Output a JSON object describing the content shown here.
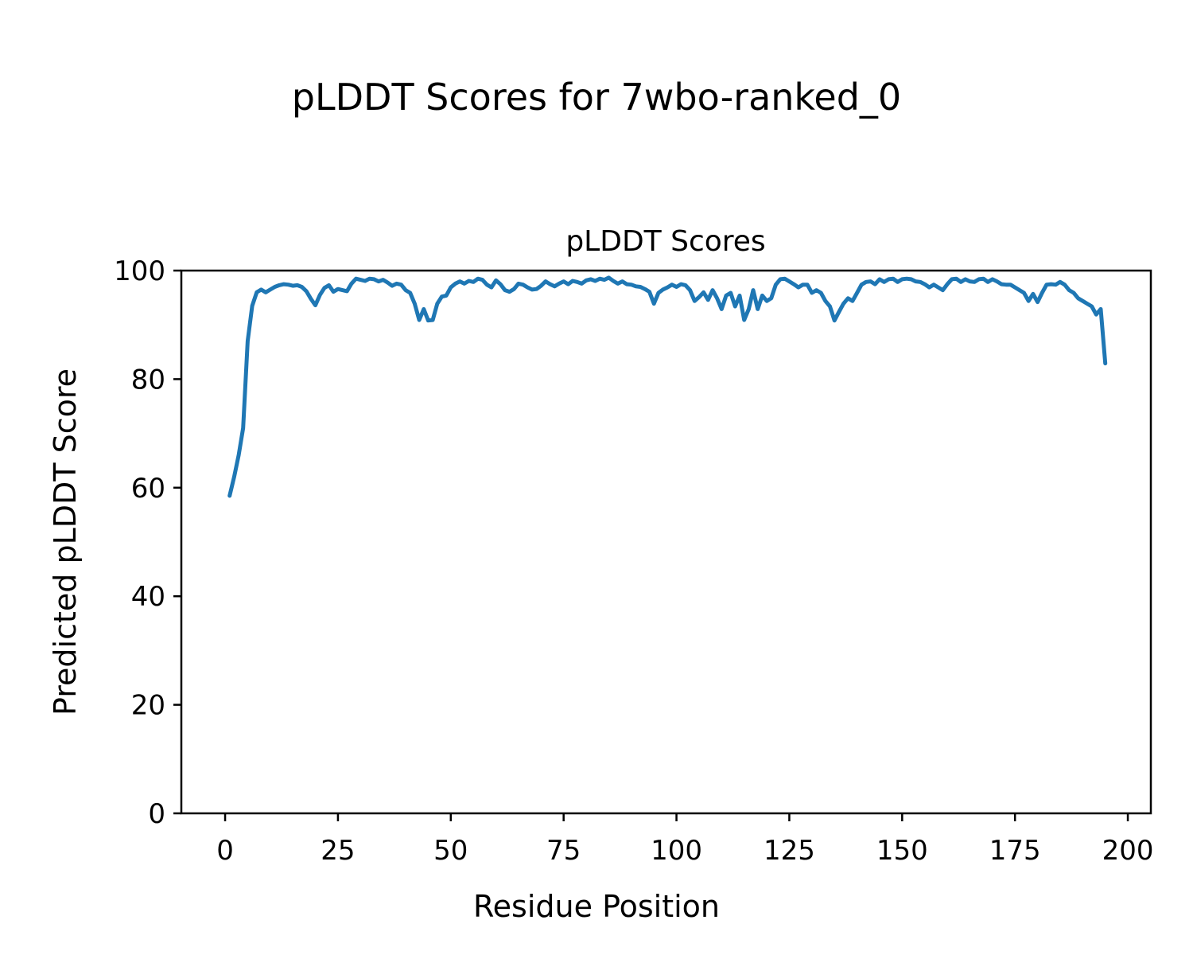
{
  "figure": {
    "suptitle": "pLDDT Scores for 7wbo-ranked_0"
  },
  "chart_data": {
    "type": "line",
    "title": "pLDDT Scores",
    "xlabel": "Residue Position",
    "ylabel": "Predicted pLDDT Score",
    "xlim": [
      -9.7,
      205.1
    ],
    "ylim": [
      0,
      100
    ],
    "xticks": [
      0,
      25,
      50,
      75,
      100,
      125,
      150,
      175,
      200
    ],
    "yticks": [
      0,
      20,
      40,
      60,
      80,
      100
    ],
    "grid": false,
    "legend": "none",
    "line_color": "#1f77b4",
    "series": [
      {
        "name": "pLDDT",
        "x": [
          1,
          2,
          3,
          4,
          5,
          6,
          7,
          8,
          9,
          10,
          11,
          12,
          13,
          14,
          15,
          16,
          17,
          18,
          19,
          20,
          21,
          22,
          23,
          24,
          25,
          26,
          27,
          28,
          29,
          30,
          31,
          32,
          33,
          34,
          35,
          36,
          37,
          38,
          39,
          40,
          41,
          42,
          43,
          44,
          45,
          46,
          47,
          48,
          49,
          50,
          51,
          52,
          53,
          54,
          55,
          56,
          57,
          58,
          59,
          60,
          61,
          62,
          63,
          64,
          65,
          66,
          67,
          68,
          69,
          70,
          71,
          72,
          73,
          74,
          75,
          76,
          77,
          78,
          79,
          80,
          81,
          82,
          83,
          84,
          85,
          86,
          87,
          88,
          89,
          90,
          91,
          92,
          93,
          94,
          95,
          96,
          97,
          98,
          99,
          100,
          101,
          102,
          103,
          104,
          105,
          106,
          107,
          108,
          109,
          110,
          111,
          112,
          113,
          114,
          115,
          116,
          117,
          118,
          119,
          120,
          121,
          122,
          123,
          124,
          125,
          126,
          127,
          128,
          129,
          130,
          131,
          132,
          133,
          134,
          135,
          136,
          137,
          138,
          139,
          140,
          141,
          142,
          143,
          144,
          145,
          146,
          147,
          148,
          149,
          150,
          151,
          152,
          153,
          154,
          155,
          156,
          157,
          158,
          159,
          160,
          161,
          162,
          163,
          164,
          165,
          166,
          167,
          168,
          169,
          170,
          171,
          172,
          173,
          174,
          175,
          176,
          177,
          178,
          179,
          180,
          181,
          182,
          183,
          184,
          185,
          186,
          187,
          188,
          189,
          190,
          191,
          192,
          193,
          194,
          195
        ],
        "y": [
          58.5,
          62.0,
          66.0,
          71.0,
          87.0,
          93.5,
          96.0,
          96.5,
          96.0,
          96.5,
          97.0,
          97.3,
          97.5,
          97.4,
          97.2,
          97.3,
          97.0,
          96.2,
          94.8,
          93.6,
          95.5,
          96.8,
          97.3,
          96.1,
          96.6,
          96.4,
          96.2,
          97.6,
          98.5,
          98.3,
          98.1,
          98.5,
          98.4,
          98.0,
          98.3,
          97.8,
          97.2,
          97.6,
          97.4,
          96.4,
          95.9,
          93.9,
          90.9,
          92.9,
          90.8,
          90.9,
          93.9,
          95.2,
          95.4,
          96.9,
          97.6,
          98.0,
          97.6,
          98.1,
          97.9,
          98.5,
          98.3,
          97.4,
          96.9,
          98.2,
          97.5,
          96.4,
          96.1,
          96.6,
          97.6,
          97.4,
          96.9,
          96.5,
          96.6,
          97.2,
          98.0,
          97.5,
          97.1,
          97.6,
          98.0,
          97.5,
          98.1,
          97.9,
          97.6,
          98.2,
          98.4,
          98.1,
          98.5,
          98.3,
          98.7,
          98.1,
          97.6,
          98.0,
          97.5,
          97.4,
          97.1,
          97.0,
          96.6,
          96.1,
          93.9,
          95.9,
          96.5,
          96.9,
          97.4,
          97.0,
          97.5,
          97.3,
          96.4,
          94.4,
          95.1,
          96.0,
          94.6,
          96.4,
          94.9,
          92.9,
          95.4,
          95.9,
          93.4,
          95.4,
          90.9,
          92.9,
          96.4,
          92.9,
          95.4,
          94.4,
          94.9,
          97.4,
          98.4,
          98.5,
          98.0,
          97.5,
          96.9,
          97.4,
          97.4,
          95.9,
          96.4,
          95.9,
          94.4,
          93.4,
          90.8,
          92.4,
          93.9,
          94.9,
          94.4,
          95.9,
          97.4,
          97.9,
          98.0,
          97.5,
          98.4,
          97.9,
          98.4,
          98.5,
          97.9,
          98.4,
          98.5,
          98.4,
          98.0,
          97.9,
          97.5,
          96.9,
          97.4,
          96.9,
          96.4,
          97.5,
          98.4,
          98.5,
          97.9,
          98.4,
          98.0,
          97.9,
          98.4,
          98.5,
          97.9,
          98.4,
          98.0,
          97.5,
          97.4,
          97.4,
          96.9,
          96.4,
          95.9,
          94.4,
          95.7,
          94.2,
          95.9,
          97.4,
          97.5,
          97.4,
          97.9,
          97.4,
          96.4,
          95.9,
          94.9,
          94.4,
          93.9,
          93.4,
          91.9,
          92.9,
          82.9
        ]
      }
    ]
  }
}
